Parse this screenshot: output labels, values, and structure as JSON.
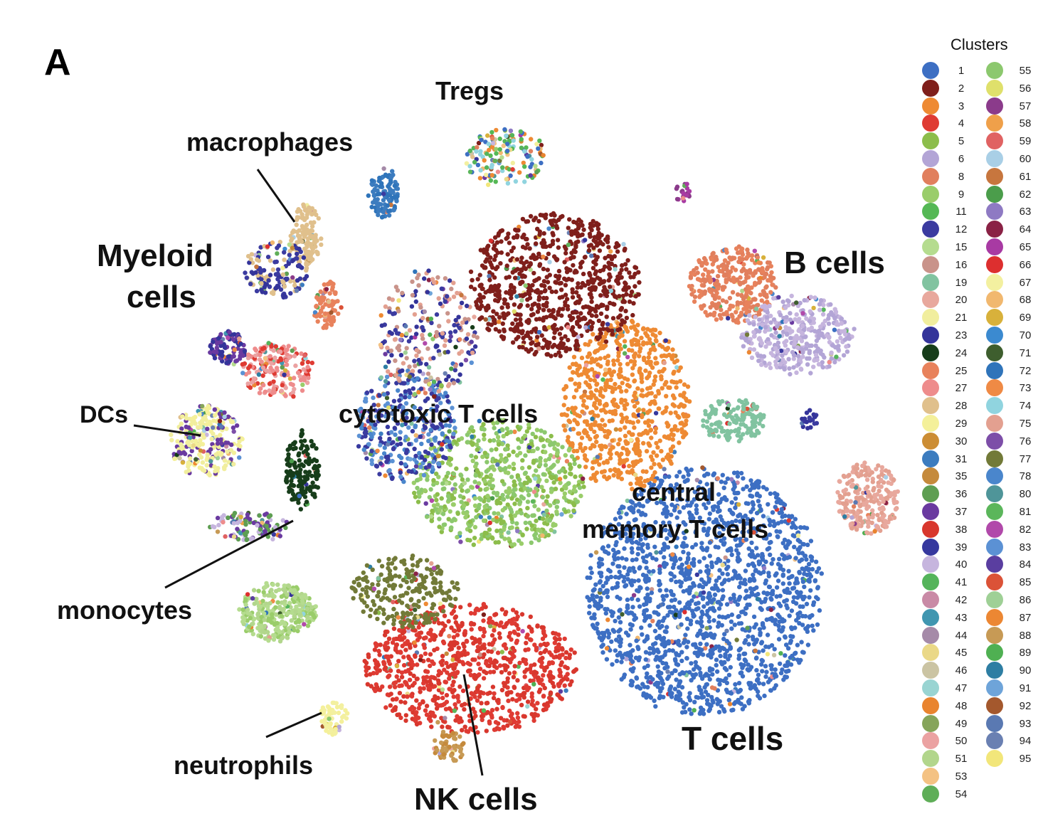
{
  "panel_letter": "A",
  "chart_data": {
    "type": "scatter",
    "title": "",
    "xlabel": "",
    "ylabel": "",
    "legend": {
      "title": "Clusters",
      "placement": "right",
      "entries": [
        {
          "id": "1",
          "color": "#3d6fc3"
        },
        {
          "id": "2",
          "color": "#7f1f1b"
        },
        {
          "id": "3",
          "color": "#ee8a33"
        },
        {
          "id": "4",
          "color": "#df3b33"
        },
        {
          "id": "5",
          "color": "#8cbd4b"
        },
        {
          "id": "6",
          "color": "#b3a5d6"
        },
        {
          "id": "8",
          "color": "#e17f5d"
        },
        {
          "id": "9",
          "color": "#9acd6a"
        },
        {
          "id": "11",
          "color": "#55b855"
        },
        {
          "id": "12",
          "color": "#3b3ba0"
        },
        {
          "id": "15",
          "color": "#b5dc8f"
        },
        {
          "id": "16",
          "color": "#c9938a"
        },
        {
          "id": "19",
          "color": "#81c3a0"
        },
        {
          "id": "20",
          "color": "#e8a89d"
        },
        {
          "id": "21",
          "color": "#f1ee9e"
        },
        {
          "id": "23",
          "color": "#34349a"
        },
        {
          "id": "24",
          "color": "#173d1a"
        },
        {
          "id": "25",
          "color": "#e8825c"
        },
        {
          "id": "27",
          "color": "#ee8c8c"
        },
        {
          "id": "28",
          "color": "#e0c08c"
        },
        {
          "id": "29",
          "color": "#f4f09a"
        },
        {
          "id": "30",
          "color": "#cc8d34"
        },
        {
          "id": "31",
          "color": "#3c7cbf"
        },
        {
          "id": "35",
          "color": "#c58a3c"
        },
        {
          "id": "36",
          "color": "#5e9e52"
        },
        {
          "id": "37",
          "color": "#6a3aa0"
        },
        {
          "id": "38",
          "color": "#d8372d"
        },
        {
          "id": "39",
          "color": "#36389e"
        },
        {
          "id": "40",
          "color": "#c6b5de"
        },
        {
          "id": "41",
          "color": "#55b45b"
        },
        {
          "id": "42",
          "color": "#c98aa6"
        },
        {
          "id": "43",
          "color": "#4096b0"
        },
        {
          "id": "44",
          "color": "#a58aa8"
        },
        {
          "id": "45",
          "color": "#ead887"
        },
        {
          "id": "46",
          "color": "#cbc4a3"
        },
        {
          "id": "47",
          "color": "#99d4d2"
        },
        {
          "id": "48",
          "color": "#e9842f"
        },
        {
          "id": "49",
          "color": "#86a45a"
        },
        {
          "id": "50",
          "color": "#eba2a2"
        },
        {
          "id": "51",
          "color": "#b2d68c"
        },
        {
          "id": "53",
          "color": "#f4c283"
        },
        {
          "id": "54",
          "color": "#5fae58"
        },
        {
          "id": "55",
          "color": "#8cc86e"
        },
        {
          "id": "56",
          "color": "#dfe06b"
        },
        {
          "id": "57",
          "color": "#8b3b8b"
        },
        {
          "id": "58",
          "color": "#efa04a"
        },
        {
          "id": "59",
          "color": "#e06262"
        },
        {
          "id": "60",
          "color": "#a9cfe6"
        },
        {
          "id": "61",
          "color": "#c7763e"
        },
        {
          "id": "62",
          "color": "#4b9d4b"
        },
        {
          "id": "63",
          "color": "#8e7ac3"
        },
        {
          "id": "64",
          "color": "#8a2245"
        },
        {
          "id": "65",
          "color": "#a83aa3"
        },
        {
          "id": "66",
          "color": "#dd2f2f"
        },
        {
          "id": "67",
          "color": "#f3f0a0"
        },
        {
          "id": "68",
          "color": "#f1b86f"
        },
        {
          "id": "69",
          "color": "#d8b13b"
        },
        {
          "id": "70",
          "color": "#3b8ad0"
        },
        {
          "id": "71",
          "color": "#3e5e2e"
        },
        {
          "id": "72",
          "color": "#2f74ba"
        },
        {
          "id": "73",
          "color": "#ef8a45"
        },
        {
          "id": "74",
          "color": "#90d4df"
        },
        {
          "id": "75",
          "color": "#e3a090"
        },
        {
          "id": "76",
          "color": "#7d4ea8"
        },
        {
          "id": "77",
          "color": "#727a38"
        },
        {
          "id": "78",
          "color": "#4a86cc"
        },
        {
          "id": "80",
          "color": "#4f9599"
        },
        {
          "id": "81",
          "color": "#5bb65b"
        },
        {
          "id": "82",
          "color": "#b149aa"
        },
        {
          "id": "83",
          "color": "#5b91d4"
        },
        {
          "id": "84",
          "color": "#5a3ea0"
        },
        {
          "id": "85",
          "color": "#db5237"
        },
        {
          "id": "86",
          "color": "#9fd096"
        },
        {
          "id": "87",
          "color": "#ec8733"
        },
        {
          "id": "88",
          "color": "#c79a55"
        },
        {
          "id": "89",
          "color": "#4fb052"
        },
        {
          "id": "90",
          "color": "#2e7ea3"
        },
        {
          "id": "91",
          "color": "#6ea4d9"
        },
        {
          "id": "92",
          "color": "#a4582d"
        },
        {
          "id": "93",
          "color": "#5a79b2"
        },
        {
          "id": "94",
          "color": "#6a80b2"
        },
        {
          "id": "95",
          "color": "#f2e67a"
        }
      ]
    },
    "annotations": [
      {
        "text": "Tregs"
      },
      {
        "text": "macrophages"
      },
      {
        "text": "Myeloid"
      },
      {
        "text": "cells"
      },
      {
        "text": "B cells"
      },
      {
        "text": "DCs"
      },
      {
        "text": "cytotoxic T cells"
      },
      {
        "text": "central"
      },
      {
        "text": "memory T cells"
      },
      {
        "text": "monocytes"
      },
      {
        "text": "T cells"
      },
      {
        "text": "neutrophils"
      },
      {
        "text": "NK cells"
      }
    ]
  }
}
